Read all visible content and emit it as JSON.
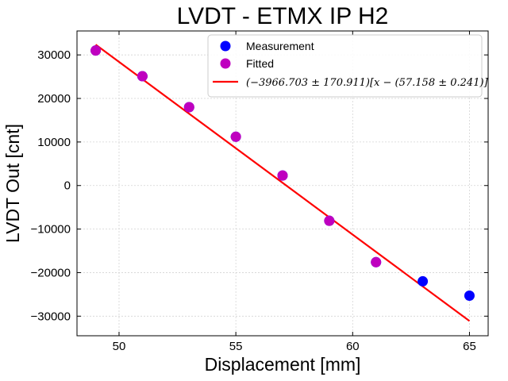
{
  "chart_data": {
    "type": "scatter",
    "title": "LVDT - ETMX IP H2",
    "xlabel": "Displacement [mm]",
    "ylabel": "LVDT Out [cnt]",
    "xlim": [
      48.2,
      65.8
    ],
    "ylim": [
      -34500,
      35500
    ],
    "xticks": [
      50,
      55,
      60,
      65
    ],
    "yticks": [
      -30000,
      -20000,
      -10000,
      0,
      10000,
      20000,
      30000
    ],
    "grid": true,
    "legend_position": "top-right",
    "series": [
      {
        "name": "Measurement",
        "kind": "scatter",
        "color": "#0000ff",
        "x": [
          49,
          51,
          53,
          55,
          57,
          59,
          61,
          63,
          65
        ],
        "y": [
          31000,
          25100,
          18000,
          11200,
          2300,
          -8100,
          -17600,
          -22000,
          -25300
        ]
      },
      {
        "name": "Fitted",
        "kind": "scatter",
        "color": "#bf00bf",
        "x": [
          49,
          51,
          53,
          55,
          57,
          59,
          61
        ],
        "y": [
          31000,
          25100,
          18000,
          11200,
          2300,
          -8100,
          -17600
        ]
      },
      {
        "name": "(−3966.703 ± 170.911)[x − (57.158 ± 0.241)]",
        "kind": "line",
        "color": "#ff0000",
        "slope": -3966.703,
        "x0": 57.158,
        "x": [
          49,
          65
        ]
      }
    ]
  }
}
